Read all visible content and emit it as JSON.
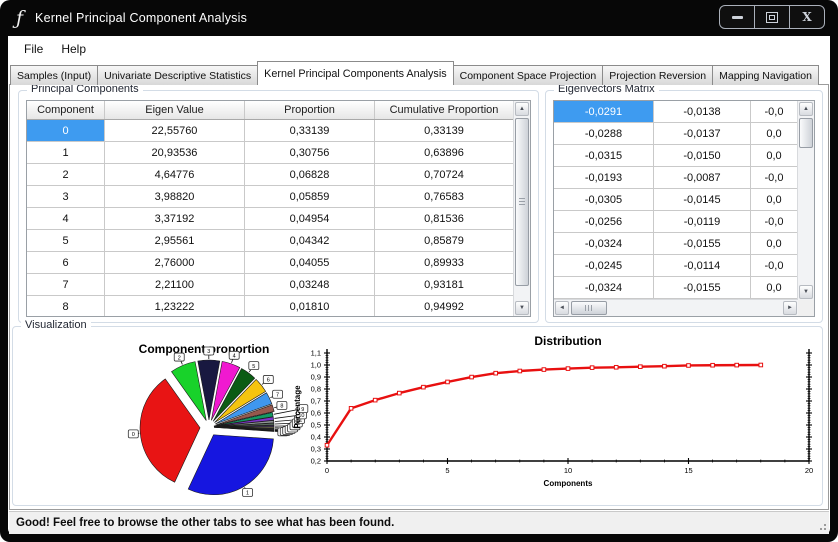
{
  "window": {
    "title": "Kernel Principal Component Analysis",
    "icon_glyph": "ƒ"
  },
  "window_controls": {
    "buttons": [
      "minimize",
      "maximize",
      "close"
    ]
  },
  "menu": {
    "items": [
      {
        "label": "File"
      },
      {
        "label": "Help"
      }
    ]
  },
  "tabs": {
    "items": [
      {
        "label": "Samples (Input)",
        "active": false
      },
      {
        "label": "Univariate Descriptive Statistics",
        "active": false
      },
      {
        "label": "Kernel Principal Components Analysis",
        "active": true
      },
      {
        "label": "Component Space Projection",
        "active": false
      },
      {
        "label": "Projection Reversion",
        "active": false
      },
      {
        "label": "Mapping Navigation",
        "active": false
      }
    ]
  },
  "principal_components": {
    "group_label": "Principal Components",
    "columns": [
      "Component",
      "Eigen Value",
      "Proportion",
      "Cumulative Proportion"
    ],
    "rows": [
      [
        "0",
        "22,55760",
        "0,33139",
        "0,33139"
      ],
      [
        "1",
        "20,93536",
        "0,30756",
        "0,63896"
      ],
      [
        "2",
        "4,64776",
        "0,06828",
        "0,70724"
      ],
      [
        "3",
        "3,98820",
        "0,05859",
        "0,76583"
      ],
      [
        "4",
        "3,37192",
        "0,04954",
        "0,81536"
      ],
      [
        "5",
        "2,95561",
        "0,04342",
        "0,85879"
      ],
      [
        "6",
        "2,76000",
        "0,04055",
        "0,89933"
      ],
      [
        "7",
        "2,21100",
        "0,03248",
        "0,93181"
      ],
      [
        "8",
        "1,23222",
        "0,01810",
        "0,94992"
      ]
    ],
    "selected_row": 0,
    "selection_color": "#3e9bf0"
  },
  "eigenvectors_matrix": {
    "group_label": "Eigenvectors Matrix",
    "rows": [
      [
        "-0,0291",
        "-0,0138",
        "-0,0"
      ],
      [
        "-0,0288",
        "-0,0137",
        "0,0"
      ],
      [
        "-0,0315",
        "-0,0150",
        "0,0"
      ],
      [
        "-0,0193",
        "-0,0087",
        "-0,0"
      ],
      [
        "-0,0305",
        "-0,0145",
        "0,0"
      ],
      [
        "-0,0256",
        "-0,0119",
        "-0,0"
      ],
      [
        "-0,0324",
        "-0,0155",
        "0,0"
      ],
      [
        "-0,0245",
        "-0,0114",
        "-0,0"
      ],
      [
        "-0,0324",
        "-0,0155",
        "0,0"
      ]
    ],
    "selected_row": 0,
    "selection_color": "#3e9bf0"
  },
  "visualization": {
    "group_label": "Visualization"
  },
  "status_bar": {
    "text": "Good! Feel free to browse the other tabs to see what has been found."
  },
  "chart_data": [
    {
      "type": "pie",
      "title": "Component proportion",
      "labels": [
        "0",
        "1",
        "2",
        "3",
        "4",
        "5",
        "6",
        "7",
        "8",
        "9",
        "10",
        "11",
        "12",
        "13",
        "14",
        "15",
        "16",
        "17",
        "18"
      ],
      "values": [
        0.33139,
        0.30756,
        0.06828,
        0.05859,
        0.04954,
        0.04342,
        0.04055,
        0.03248,
        0.0181,
        0.0115,
        0.0085,
        0.0065,
        0.0055,
        0.0045,
        0.0035,
        0.0027,
        0.0021,
        0.0016,
        0.0011
      ],
      "colors": [
        "#e81414",
        "#1616e0",
        "#18d22a",
        "#181840",
        "#f019d0",
        "#0b5c14",
        "#f5c40f",
        "#3f97ef",
        "#96584d",
        "#129a64",
        "#7e35c8",
        "#8f9496",
        "#5a6b5d",
        "#4a3a62",
        "#7d7a45",
        "#36393f",
        "#59474a",
        "#3c4f63",
        "#141414"
      ],
      "draw_order_ccw_from_east": [
        18,
        17,
        16,
        15,
        14,
        13,
        12,
        11,
        10,
        9,
        8,
        7,
        6,
        5,
        4,
        3,
        2,
        0,
        1
      ],
      "exploded": true,
      "legend": "callout-labels"
    },
    {
      "type": "line",
      "title": "Distribution",
      "xlabel": "Components",
      "ylabel": "Percentage",
      "x": [
        0,
        1,
        2,
        3,
        4,
        5,
        6,
        7,
        8,
        9,
        10,
        11,
        12,
        13,
        14,
        15,
        16,
        17,
        18
      ],
      "y": [
        0.33139,
        0.63896,
        0.70724,
        0.76583,
        0.81536,
        0.85879,
        0.89933,
        0.93181,
        0.94992,
        0.962,
        0.97,
        0.978,
        0.981,
        0.986,
        0.99,
        0.996,
        0.998,
        0.999,
        1.0
      ],
      "xlim": [
        0,
        20
      ],
      "ylim": [
        0.2,
        1.1
      ],
      "xticks": [
        0,
        5,
        10,
        15,
        20
      ],
      "yticks": [
        0.2,
        0.3,
        0.4,
        0.5,
        0.6,
        0.7,
        0.8,
        0.9,
        1.0,
        1.1
      ],
      "decimal_separator": ",",
      "line_color": "#e81010",
      "marker": "open-square",
      "grid": false
    }
  ]
}
